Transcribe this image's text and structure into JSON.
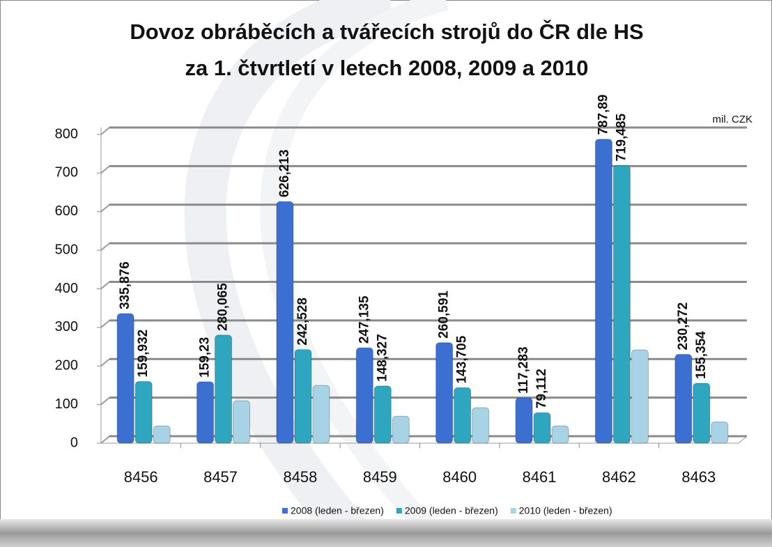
{
  "chart_data": {
    "type": "bar",
    "title": [
      "Dovoz obráběcích a tvářecích strojů do ČR dle HS",
      "za 1. čtvrtletí v letech 2008, 2009 a 2010"
    ],
    "unit_label": "mil. CZK",
    "categories": [
      "8456",
      "8457",
      "8458",
      "8459",
      "8460",
      "8461",
      "8462",
      "8463"
    ],
    "series": [
      {
        "name": "2008 (leden - březen)",
        "color": "#3b6fd1",
        "values": [
          335.876,
          159.23,
          626.213,
          247.135,
          260.591,
          117.283,
          787.89,
          230.272
        ],
        "value_labels": [
          "335,876",
          "159,23",
          "626,213",
          "247,135",
          "260,591",
          "117,283",
          "787,89",
          "230,272"
        ]
      },
      {
        "name": "2009 (leden - březen)",
        "color": "#2ea6bf",
        "values": [
          159.932,
          280.065,
          242.528,
          148.327,
          143.705,
          79.112,
          719.485,
          155.354
        ],
        "value_labels": [
          "159,932",
          "280,065",
          "242,528",
          "148,327",
          "143,705",
          "79,112",
          "719,485",
          "155,354"
        ]
      },
      {
        "name": "2010 (leden - březen)",
        "color": "#a8d2e6",
        "values": [
          45,
          110,
          150,
          70,
          92,
          45,
          242,
          55
        ]
      }
    ],
    "ylim": [
      0,
      800
    ],
    "yticks": [
      0,
      100,
      200,
      300,
      400,
      500,
      600,
      700,
      800
    ],
    "grid": true
  }
}
